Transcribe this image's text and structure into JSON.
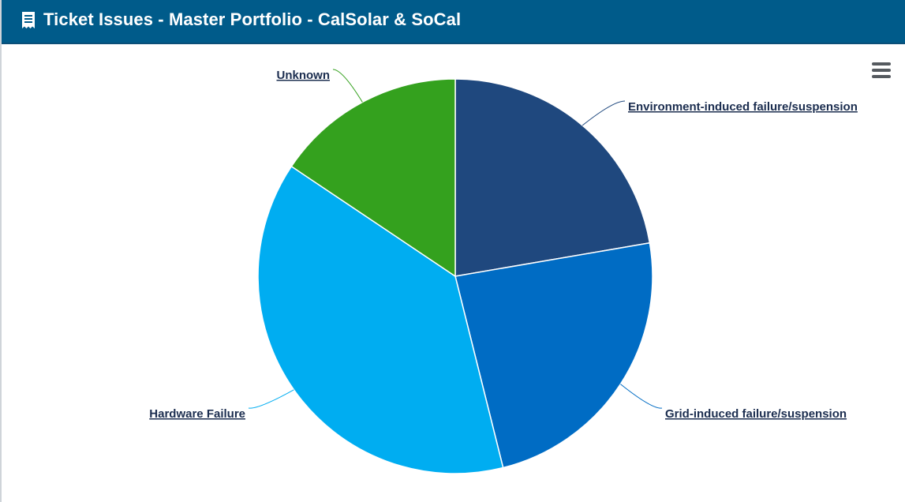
{
  "header": {
    "title": "Ticket Issues - Master Portfolio - CalSolar & SoCal",
    "icon": "receipt-icon"
  },
  "menu": {
    "icon": "hamburger-menu-icon"
  },
  "chart_data": {
    "type": "pie",
    "title": "",
    "slices": [
      {
        "label": "Environment-induced failure/suspension",
        "value": 22.3,
        "color": "#1f487e"
      },
      {
        "label": "Grid-induced failure/suspension",
        "value": 23.8,
        "color": "#006cc4"
      },
      {
        "label": "Hardware Failure",
        "value": 38.3,
        "color": "#00adf1"
      },
      {
        "label": "Unknown",
        "value": 15.6,
        "color": "#34a11e"
      }
    ]
  }
}
